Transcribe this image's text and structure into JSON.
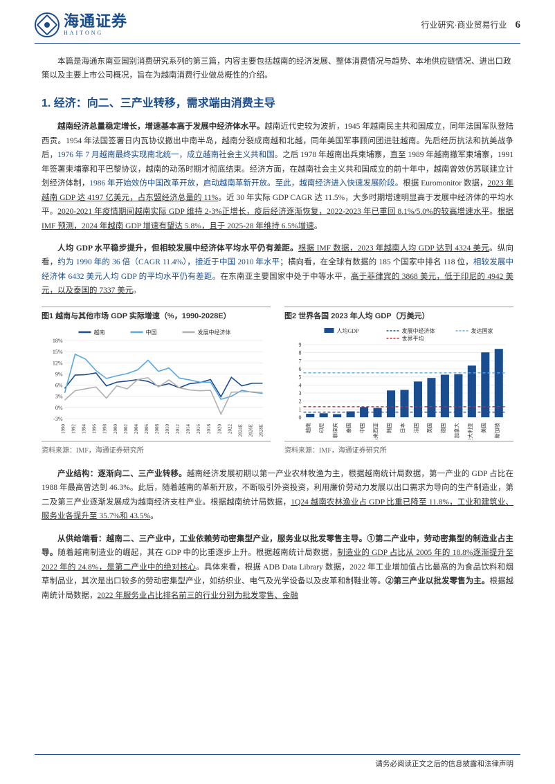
{
  "header": {
    "logo_cn": "海通证券",
    "logo_en": "HAITONG",
    "category": "行业研究·商业贸易行业",
    "page": "6"
  },
  "intro": "本篇是海通东南亚国别消费研究系列的第三篇，内容主要包括越南的经济发展、整体消费情况与趋势、本地供应链情况、进出口政策以及主要上市公司概况，旨在为越南消费行业做总概性的介绍。",
  "section_title": "1. 经济：向二、三产业转移，需求端由消费主导",
  "para1_open": "越南经济总量稳定增长，增速基本高于发展中经济体水平。",
  "para1a": "越南近代史较为波折，1945 年越南民主共和国成立，同年法国军队登陆西贡。1954 年法国签署日内瓦协议撤出中南半岛，越南分裂成南越和北越，同年美国军事顾问团进驻越南。先后经历抗法和抗美战争后，",
  "para1_blue1": "1976 年 7 月越南最终实现南北统一，成立越南社会主义共和国。",
  "para1b": "之后 1978 年越南出兵柬埔寨，直至 1989 年越南撤军柬埔寨，1991 年签署柬埔寨和平巴黎协议，越南的动荡时期才彻底结束。经济方面，在越南社会主义共和国成立的前十年中，越南曾效仿苏联建立计划经济体制，",
  "para1_blue2": "1986 年开始效仿中国改革开放，启动越南革新开放。至此，越南经济进入快速发展阶段。",
  "para1c": "根据 Euromonitor 数据，",
  "para1_u1": "2023 年越南 GDP 达 4197 亿美元，占东盟经济总量的 11%",
  "para1d": "。近 30 年实际 GDP CAGR 达 11.5%，大多时期增速明显高于发展中经济体的平均水平。",
  "para1_u2": "2020-2021 年疫情期间越南实际 GDP 维持 2-3%正增长，疫后经济逐渐恢复，2022-2023 年已重回 8.1%/5.0%的较高增速水平",
  "para1e": "。",
  "para1_u3": "根据 IMF 预测，2024 年越南 GDP 增速有望达 5.8%，且于 2025-28 年维持 6.5%增速",
  "para1f": "。",
  "para2_open": "人均 GDP 水平稳步提升，但相较发展中经济体平均水平仍有差距。",
  "para2_u1": "根据 IMF 数据，2023 年越南人均 GDP 达到 4324 美元",
  "para2a": "。纵向看，",
  "para2_blue1": "约为 1990 年的 36 倍（CAGR 11.4%），接近于中国 2010 年水平",
  "para2b": "；横向看，在全球有数据的 185 个国家中排名 118 位，",
  "para2_blue2": "相较发展中经济体 6432 美元人均 GDP 的平均水平仍有差距",
  "para2c": "。在东南亚主要国家中处于中等水平，",
  "para2_u2": "高于菲律宾的 3868 美元，低于印尼的 4942 美元，以及泰国的 7337 美元",
  "para2d": "。",
  "chart1": {
    "title": "图1  越南与其他市场 GDP 实际增速（%，1990-2028E）",
    "source": "资料来源：IMF，海通证券研究所",
    "type": "line",
    "legend": [
      "越南",
      "中国",
      "发展中经济体"
    ],
    "legend_colors": [
      "#1a4d8f",
      "#5ba8e0",
      "#b0b0b0"
    ],
    "x_labels": [
      "1990",
      "1992",
      "1994",
      "1996",
      "1998",
      "2000",
      "2002",
      "2004",
      "2006",
      "2008",
      "2010",
      "2012",
      "2014",
      "2016",
      "2018",
      "2020",
      "2022",
      "2024E",
      "2026E",
      "2028E"
    ],
    "ylim": [
      -3,
      18
    ],
    "ytick_step": 3,
    "grid_color": "#d9d9d9",
    "background_color": "#ffffff",
    "series": {
      "vietnam": [
        5.1,
        8.7,
        8.8,
        9.3,
        5.8,
        6.8,
        7.1,
        7.5,
        7.0,
        5.7,
        6.4,
        5.3,
        6.4,
        6.7,
        7.5,
        2.9,
        8.1,
        5.8,
        6.5,
        6.5
      ],
      "china": [
        3.9,
        14.3,
        13.0,
        9.9,
        7.8,
        8.5,
        9.1,
        10.1,
        12.7,
        9.7,
        10.6,
        7.9,
        7.4,
        6.8,
        6.8,
        2.2,
        3.0,
        4.6,
        4.1,
        3.8
      ],
      "em": [
        2.0,
        4.5,
        5.0,
        5.5,
        2.5,
        5.8,
        5.0,
        7.5,
        8.0,
        5.5,
        7.4,
        5.3,
        4.7,
        4.5,
        4.6,
        -1.8,
        4.1,
        4.2,
        4.2,
        4.0
      ]
    }
  },
  "chart2": {
    "title": "图2  世界各国 2023 年人均 GDP（万美元）",
    "source": "资料来源：IMF，海通证券研究所",
    "type": "bar",
    "legend_bar": "人均GDP",
    "legend_lines": [
      "发展中经济体",
      "发达国家",
      "世界平均"
    ],
    "legend_line_colors": [
      "#1a4d8f",
      "#5ba8e0",
      "#d62728"
    ],
    "bar_color": "#1a4d8f",
    "categories": [
      "越南",
      "印尼",
      "菲律宾",
      "泰国",
      "中国",
      "马来西亚",
      "韩国",
      "日本",
      "法国",
      "英国",
      "德国",
      "加拿大",
      "澳大利亚",
      "美国",
      "新加坡"
    ],
    "values": [
      0.43,
      0.49,
      0.39,
      0.73,
      1.26,
      1.16,
      3.32,
      3.39,
      4.43,
      4.87,
      5.27,
      5.33,
      6.4,
      8.04,
      8.47
    ],
    "ref_lines": {
      "em": 0.64,
      "dev": 5.5,
      "world": 1.3
    },
    "ylim": [
      0,
      9
    ],
    "ytick_step": 1,
    "grid_color": "#d9d9d9"
  },
  "para3_open": "产业结构：逐渐向二、三产业转移。",
  "para3a": "越南经济发展初期以第一产业农林牧渔为主，根据越南统计局数据，第一产业的 GDP 占比在 1988 年最高曾达到 46.3%。此后，随着越南的革新开放，不断吸引外资投资，利用廉价劳动力发展以出口需求为导向的生产制造业，第二及第三产业逐渐发展成为越南经济支柱产业。根据越南统计局数据，",
  "para3_u1": "1Q24 越南农林渔业占 GDP 比重已降至 11.8%，工业和建筑业、服务业各提升至 35.7%和 43.5%",
  "para3b": "。",
  "para4_open": "从供给端看：越南二、三产业中，工业依赖劳动密集型产业，服务业以批发零售主导。①第二产业中，劳动密集型的制造业占主导。",
  "para4a": "随着越南制造业的崛起，其在 GDP 中的比重逐步上升。根据越南统计局数据，",
  "para4_u1": "制造业的 GDP 占比从 2005 年的 18.8%逐渐提升至 2022 年的 24.8%，是第二产业中的绝对核心",
  "para4b": "。具体来看，根据 ADB Data Library 数据，2022 年工业增加值占比最高的为食品饮料和烟草制品业，其次是出口较多的劳动密集型产业，如纺织业、电气及光学设备以及皮革和制鞋业等。",
  "para4_open2": "②第三产业以批发零售为主。",
  "para4c": "根据越南统计局数据，",
  "para4_u2": "2022 年服务业占比排名前三的行业分别为批发零售、金融",
  "footer": "请务必阅读正文之后的信息披露和法律声明"
}
